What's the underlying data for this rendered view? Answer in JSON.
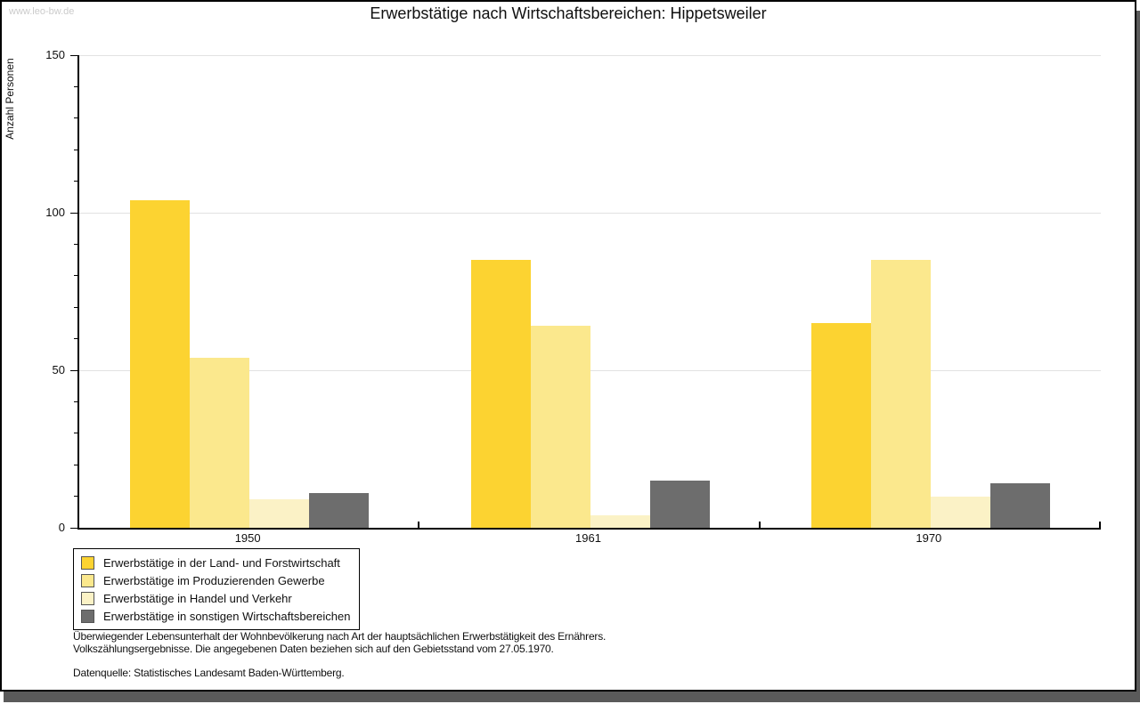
{
  "window": {
    "watermark": "www.leo-bw.de"
  },
  "header": {
    "title": "Erwerbstätige nach Wirtschaftsbereichen: Hippetsweiler"
  },
  "chart_data": {
    "type": "bar",
    "title": "Erwerbstätige nach Wirtschaftsbereichen: Hippetsweiler",
    "xlabel": "",
    "ylabel": "Anzahl Personen",
    "ylim": [
      0,
      150
    ],
    "yticks": [
      0,
      50,
      100,
      150
    ],
    "minor_tick_step": 10,
    "grid": "horizontal gridlines at 50, 100, 150",
    "legend_position": "bottom-left boxed",
    "categories": [
      "1950",
      "1961",
      "1970"
    ],
    "series": [
      {
        "name": "Erwerbstätige in der Land- und Forstwirtschaft",
        "color": "#fcd331",
        "values": [
          104,
          85,
          65
        ]
      },
      {
        "name": "Erwerbstätige im Produzierenden Gewerbe",
        "color": "#fbe88d",
        "values": [
          54,
          64,
          85
        ]
      },
      {
        "name": "Erwerbstätige in Handel und Verkehr",
        "color": "#fbf2c6",
        "values": [
          9,
          4,
          10
        ]
      },
      {
        "name": "Erwerbstätige in sonstigen Wirtschaftsbereichen",
        "color": "#6d6d6d",
        "values": [
          11,
          15,
          14
        ]
      }
    ]
  },
  "footnotes": {
    "line1": "Überwiegender Lebensunterhalt der Wohnbevölkerung nach Art der hauptsächlichen Erwerbstätigkeit des Ernährers.",
    "line2": "Volkszählungsergebnisse. Die angegebenen Daten beziehen sich auf den Gebietsstand vom 27.05.1970.",
    "source": "Datenquelle: Statistisches Landesamt Baden-Württemberg."
  },
  "colors": {
    "axis": "#000000",
    "gridline": "#e2e2e2",
    "watermark": "#cbcbcb",
    "shadow": "#5a5a5a",
    "background": "#ffffff"
  }
}
